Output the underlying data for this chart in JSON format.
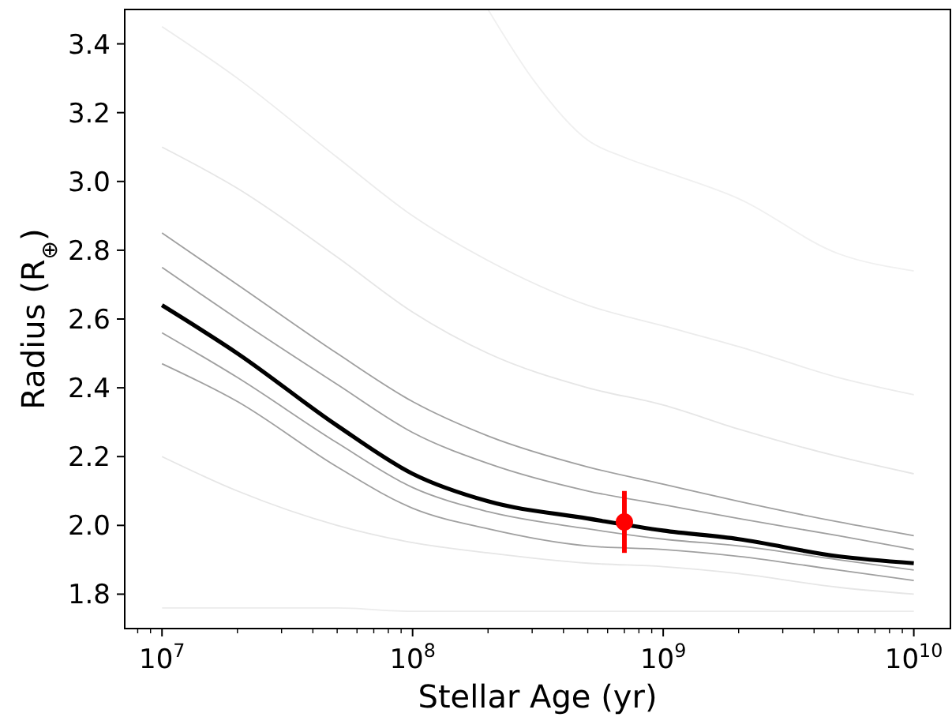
{
  "chart_data": {
    "type": "line",
    "xlabel": "Stellar Age (yr)",
    "ylabel": "Radius (R$_{⊕}$)",
    "log": "x",
    "grid": false,
    "xlim": [
      7100000,
      14000000000
    ],
    "ylim": [
      1.7,
      3.5
    ],
    "xticks": [
      {
        "value": 8000000,
        "label": null
      },
      {
        "value": 9000000,
        "label": null
      },
      {
        "value": 10000000,
        "label": "10$^{7}$"
      },
      {
        "value": 20000000,
        "label": null
      },
      {
        "value": 30000000,
        "label": null
      },
      {
        "value": 40000000,
        "label": null
      },
      {
        "value": 50000000,
        "label": null
      },
      {
        "value": 60000000,
        "label": null
      },
      {
        "value": 70000000,
        "label": null
      },
      {
        "value": 80000000,
        "label": null
      },
      {
        "value": 90000000,
        "label": null
      },
      {
        "value": 100000000,
        "label": "10$^{8}$"
      },
      {
        "value": 200000000,
        "label": null
      },
      {
        "value": 300000000,
        "label": null
      },
      {
        "value": 400000000,
        "label": null
      },
      {
        "value": 500000000,
        "label": null
      },
      {
        "value": 600000000,
        "label": null
      },
      {
        "value": 700000000,
        "label": null
      },
      {
        "value": 800000000,
        "label": null
      },
      {
        "value": 900000000,
        "label": null
      },
      {
        "value": 1000000000,
        "label": "10$^{9}$"
      },
      {
        "value": 2000000000,
        "label": null
      },
      {
        "value": 3000000000,
        "label": null
      },
      {
        "value": 4000000000,
        "label": null
      },
      {
        "value": 5000000000,
        "label": null
      },
      {
        "value": 6000000000,
        "label": null
      },
      {
        "value": 7000000000,
        "label": null
      },
      {
        "value": 8000000000,
        "label": null
      },
      {
        "value": 9000000000,
        "label": null
      },
      {
        "value": 10000000000,
        "label": "10$^{10}$"
      }
    ],
    "yticks": [
      1.8,
      {
        "value": 2,
        "label": "2.0"
      },
      2.2,
      2.4,
      2.6,
      2.8,
      {
        "value": 3,
        "label": "3.0"
      },
      3.2,
      3.4
    ],
    "x": [
      10000000,
      20000000,
      50000000,
      100000000,
      200000000,
      500000000,
      1000000000,
      2000000000,
      5000000000,
      10000000000
    ],
    "series": [
      {
        "color": "#f0f0f0",
        "x": [
          200000000,
          300000000,
          500000000,
          700000000,
          1000000000,
          2000000000,
          5000000000,
          10000000000
        ],
        "values": [
          3.5,
          3.3,
          3.12,
          3.07,
          3.03,
          2.95,
          2.79,
          2.74
        ]
      },
      {
        "color": "#ececec",
        "values": [
          3.45,
          3.3,
          3.07,
          2.9,
          2.77,
          2.64,
          2.58,
          2.52,
          2.43,
          2.38
        ]
      },
      {
        "color": "#e6e6e6",
        "values": [
          3.1,
          2.98,
          2.78,
          2.62,
          2.5,
          2.4,
          2.35,
          2.28,
          2.2,
          2.15
        ]
      },
      {
        "color": "#a0a0a0",
        "values": [
          2.85,
          2.7,
          2.5,
          2.36,
          2.26,
          2.17,
          2.12,
          2.07,
          2.01,
          1.97
        ]
      },
      {
        "color": "#a0a0a0",
        "values": [
          2.75,
          2.6,
          2.41,
          2.27,
          2.18,
          2.1,
          2.06,
          2.02,
          1.97,
          1.93
        ]
      },
      {
        "color": "#a0a0a0",
        "values": [
          2.56,
          2.43,
          2.24,
          2.11,
          2.04,
          1.99,
          1.96,
          1.94,
          1.9,
          1.87
        ]
      },
      {
        "color": "#a0a0a0",
        "values": [
          2.47,
          2.36,
          2.17,
          2.05,
          1.99,
          1.94,
          1.93,
          1.91,
          1.87,
          1.84
        ]
      },
      {
        "color": "#e6e6e6",
        "values": [
          2.2,
          2.1,
          2.0,
          1.95,
          1.92,
          1.89,
          1.88,
          1.86,
          1.82,
          1.8
        ]
      },
      {
        "color": "#ececec",
        "values": [
          1.76,
          1.76,
          1.76,
          1.75,
          1.75,
          1.75,
          1.75,
          1.75,
          1.75,
          1.75
        ]
      },
      {
        "color": "#000000",
        "values": [
          2.64,
          2.5,
          2.29,
          2.15,
          2.07,
          2.02,
          1.985,
          1.96,
          1.91,
          1.89
        ]
      },
      {
        "type": "scatter",
        "color": "#ff0000",
        "marker": "circle",
        "x": [
          700000000
        ],
        "values": [
          2.01
        ],
        "errors": [
          0.09
        ]
      }
    ]
  }
}
